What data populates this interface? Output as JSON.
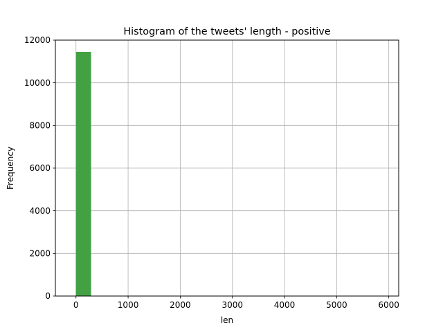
{
  "chart_data": {
    "type": "bar",
    "title": "Histogram of the tweets' length - positive",
    "xlabel": "len",
    "ylabel": "Frequency",
    "xlim": [
      -395,
      6190
    ],
    "ylim": [
      0,
      12000
    ],
    "x_ticks": [
      0,
      1000,
      2000,
      3000,
      4000,
      5000,
      6000
    ],
    "y_ticks": [
      0,
      2000,
      4000,
      6000,
      8000,
      10000,
      12000
    ],
    "grid": true,
    "bar_color": "#43a143",
    "bins": [
      {
        "x0": 0,
        "x1": 290,
        "count": 11450
      }
    ]
  }
}
